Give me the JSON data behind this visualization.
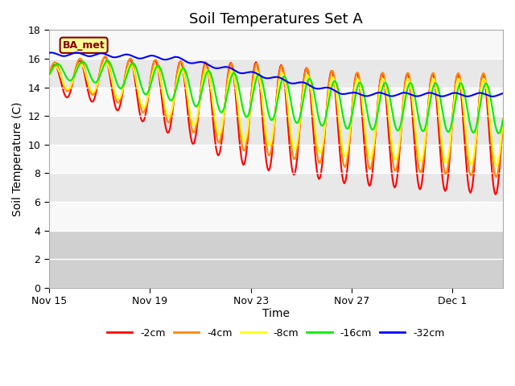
{
  "title": "Soil Temperatures Set A",
  "xlabel": "Time",
  "ylabel": "Soil Temperature (C)",
  "ylim": [
    0,
    18
  ],
  "yticks": [
    0,
    2,
    4,
    6,
    8,
    10,
    12,
    14,
    16,
    18
  ],
  "legend_labels": [
    "-2cm",
    "-4cm",
    "-8cm",
    "-16cm",
    "-32cm"
  ],
  "legend_colors": [
    "#ff0000",
    "#ff8800",
    "#ffff00",
    "#00ee00",
    "#0000ff"
  ],
  "line_colors": [
    "#ff0000",
    "#ff8800",
    "#ffff00",
    "#00ee00",
    "#0000ff"
  ],
  "annotation_text": "BA_met",
  "annotation_color": "#880000",
  "annotation_bg": "#ffff99",
  "title_fontsize": 13,
  "label_fontsize": 10,
  "tick_fontsize": 9
}
